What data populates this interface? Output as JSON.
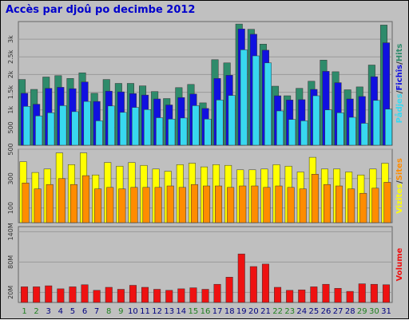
{
  "title": "Accès par djoû po decimbe 2012",
  "colors": {
    "hits": "#2e8b6b",
    "files": "#1010e0",
    "pages": "#38d8f0",
    "visits": "#ffff00",
    "sites": "#ff8c00",
    "volume": "#ee1111",
    "weekend": "#208020",
    "weekday": "#000080"
  },
  "chart_data": [
    {
      "type": "bar",
      "categories": [
        "1",
        "2",
        "3",
        "4",
        "5",
        "6",
        "7",
        "8",
        "9",
        "10",
        "11",
        "12",
        "13",
        "14",
        "15",
        "16",
        "17",
        "18",
        "19",
        "20",
        "21",
        "22",
        "23",
        "24",
        "25",
        "26",
        "27",
        "28",
        "29",
        "30",
        "31"
      ],
      "weekend_days": [
        "1",
        "2",
        "8",
        "9",
        "15",
        "16",
        "22",
        "23",
        "29",
        "30"
      ],
      "ylim": [
        0,
        3500
      ],
      "yticks": [
        "500",
        "1k",
        "1.5k",
        "2k",
        "2.5k",
        "3k"
      ],
      "ytick_values": [
        500,
        1000,
        1500,
        2000,
        2500,
        3000
      ],
      "series": [
        {
          "name": "Hits",
          "color_key": "hits",
          "values": [
            1860,
            1580,
            1930,
            1970,
            1890,
            2050,
            1470,
            1860,
            1750,
            1750,
            1680,
            1520,
            1320,
            1630,
            1720,
            1200,
            2420,
            2330,
            3430,
            3280,
            2860,
            1670,
            1400,
            1610,
            1810,
            2410,
            2080,
            1570,
            1650,
            2270,
            3400
          ]
        },
        {
          "name": "Fichîs",
          "color_key": "files",
          "values": [
            1470,
            1160,
            1610,
            1640,
            1600,
            1790,
            1240,
            1530,
            1510,
            1460,
            1420,
            1310,
            1140,
            1350,
            1450,
            1040,
            1890,
            1980,
            3290,
            3140,
            2690,
            1400,
            1280,
            1290,
            1580,
            2090,
            1770,
            1310,
            1380,
            1940,
            2900
          ]
        },
        {
          "name": "Pådjes",
          "color_key": "pages",
          "values": [
            1100,
            830,
            920,
            1120,
            950,
            1240,
            690,
            1110,
            930,
            1070,
            1010,
            780,
            740,
            770,
            1120,
            740,
            1280,
            1410,
            2700,
            2530,
            2330,
            970,
            730,
            690,
            1400,
            1000,
            920,
            790,
            620,
            1270,
            1020
          ]
        }
      ],
      "legend_rotated": [
        "Pådjes",
        "/",
        "Fichîs",
        "/",
        "Hits"
      ]
    },
    {
      "type": "bar",
      "categories": [
        "1",
        "2",
        "3",
        "4",
        "5",
        "6",
        "7",
        "8",
        "9",
        "10",
        "11",
        "12",
        "13",
        "14",
        "15",
        "16",
        "17",
        "18",
        "19",
        "20",
        "21",
        "22",
        "23",
        "24",
        "25",
        "26",
        "27",
        "28",
        "29",
        "30",
        "31"
      ],
      "ylim": [
        0,
        500
      ],
      "yticks": [
        "100",
        "300",
        "500"
      ],
      "ytick_values": [
        100,
        300,
        500
      ],
      "series": [
        {
          "name": "Vizites",
          "color_key": "visits",
          "values": [
            415,
            342,
            365,
            475,
            395,
            475,
            325,
            410,
            385,
            410,
            390,
            365,
            350,
            395,
            405,
            380,
            395,
            390,
            360,
            360,
            365,
            395,
            385,
            345,
            445,
            365,
            365,
            345,
            325,
            365,
            405
          ]
        },
        {
          "name": "Sites",
          "color_key": "sites",
          "values": [
            270,
            230,
            260,
            300,
            260,
            320,
            230,
            240,
            230,
            240,
            240,
            240,
            250,
            240,
            260,
            250,
            250,
            240,
            250,
            250,
            240,
            250,
            240,
            230,
            330,
            260,
            250,
            230,
            200,
            235,
            275
          ]
        }
      ],
      "legend_rotated": [
        "Vizites",
        "/",
        "Sites"
      ]
    },
    {
      "type": "bar",
      "categories": [
        "1",
        "2",
        "3",
        "4",
        "5",
        "6",
        "7",
        "8",
        "9",
        "10",
        "11",
        "12",
        "13",
        "14",
        "15",
        "16",
        "17",
        "18",
        "19",
        "20",
        "21",
        "22",
        "23",
        "24",
        "25",
        "26",
        "27",
        "28",
        "29",
        "30",
        "31"
      ],
      "ylim": [
        0,
        150
      ],
      "yticks": [
        "20M",
        "80M",
        "140M"
      ],
      "ytick_values": [
        20,
        80,
        140
      ],
      "series": [
        {
          "name": "Volume",
          "color_key": "volume",
          "values": [
            31,
            31,
            33,
            27,
            31,
            35,
            24,
            30,
            26,
            34,
            30,
            26,
            24,
            27,
            29,
            26,
            36,
            50,
            96,
            71,
            76,
            30,
            24,
            25,
            31,
            36,
            28,
            22,
            37,
            36,
            35
          ]
        }
      ],
      "legend_rotated": [
        "Volume"
      ]
    }
  ]
}
